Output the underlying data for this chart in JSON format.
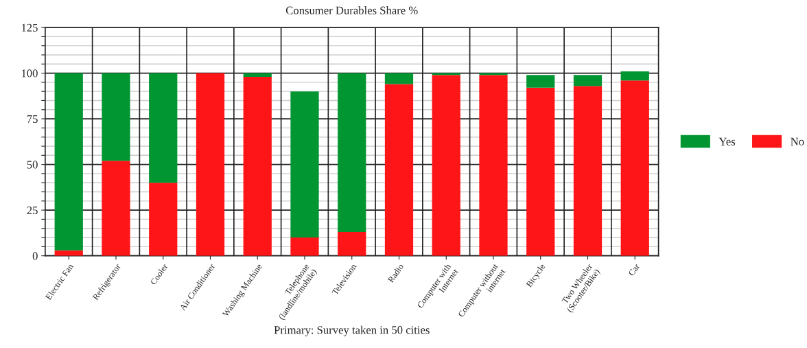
{
  "chart_data": {
    "type": "bar",
    "title": "Consumer Durables Share %",
    "xlabel": "Primary: Survey taken in 50 cities",
    "categories": [
      "Electric Fan",
      "Refrigerator",
      "Cooler",
      "Air Conditioner",
      "Washing Machine",
      "Telephone\n(landline/mobile)",
      "Television",
      "Radio",
      "Computer with\nInternet",
      "Computer without\ninternet",
      "Bicycle",
      "Two Wheeler\n(Scooter/Bike)",
      "Car"
    ],
    "stacked": true,
    "series": [
      {
        "name": "No",
        "color": "#fe1518",
        "values": [
          3,
          52,
          40,
          100,
          98,
          10,
          13,
          94,
          99,
          99,
          92,
          93,
          96
        ]
      },
      {
        "name": "Yes",
        "color": "#029632",
        "values": [
          97,
          48,
          60,
          0,
          2,
          80,
          87,
          6,
          1,
          1,
          7,
          6,
          5
        ]
      }
    ],
    "ylim": [
      0,
      125
    ],
    "yticks": [
      0,
      {
        "value": 5,
        "label": null
      },
      {
        "value": 10,
        "label": null
      },
      {
        "value": 15,
        "label": null
      },
      {
        "value": 20,
        "label": null
      },
      25,
      {
        "value": 30,
        "label": null
      },
      {
        "value": 35,
        "label": null
      },
      {
        "value": 40,
        "label": null
      },
      {
        "value": 45,
        "label": null
      },
      50,
      {
        "value": 55,
        "label": null
      },
      {
        "value": 60,
        "label": null
      },
      {
        "value": 65,
        "label": null
      },
      {
        "value": 70,
        "label": null
      },
      75,
      {
        "value": 80,
        "label": null
      },
      {
        "value": 85,
        "label": null
      },
      {
        "value": 90,
        "label": null
      },
      {
        "value": 95,
        "label": null
      },
      100,
      {
        "value": 105,
        "label": null
      },
      {
        "value": 110,
        "label": null
      },
      {
        "value": 115,
        "label": null
      },
      {
        "value": 120,
        "label": null
      },
      125
    ],
    "grid": true,
    "legend": "right"
  }
}
